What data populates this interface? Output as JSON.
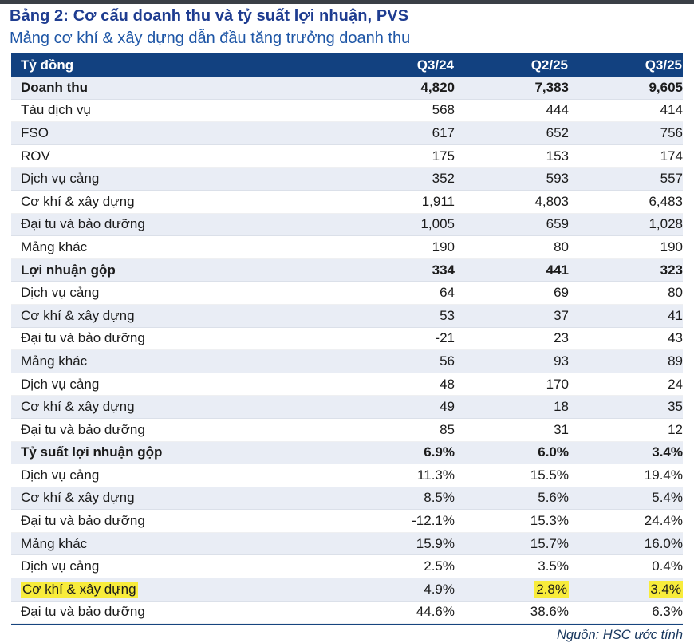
{
  "colors": {
    "rule_top": "#3a3f46",
    "rule_bottom": "#17457f",
    "title": "#1e3c90",
    "subtitle": "#1e56a6",
    "header_bg": "#124180",
    "zebra": "#e9edf5",
    "highlight": "#f8ec3b",
    "text": "#1b1b1b",
    "source": "#17365d"
  },
  "title": "Bảng 2: Cơ cấu doanh thu và tỷ suất lợi nhuận, PVS",
  "subtitle": "Mảng cơ khí & xây dựng dẫn đầu tăng trưởng doanh thu",
  "source": "Nguồn: HSC ước tính",
  "table": {
    "headers": [
      "Tỷ đồng",
      "Q3/24",
      "Q2/25",
      "Q3/25"
    ],
    "rows": [
      {
        "label": "Doanh thu",
        "values": [
          "4,820",
          "7,383",
          "9,605"
        ],
        "bold": true
      },
      {
        "label": "Tàu dịch vụ",
        "values": [
          "568",
          "444",
          "414"
        ]
      },
      {
        "label": "FSO",
        "values": [
          "617",
          "652",
          "756"
        ]
      },
      {
        "label": "ROV",
        "values": [
          "175",
          "153",
          "174"
        ]
      },
      {
        "label": "Dịch vụ cảng",
        "values": [
          "352",
          "593",
          "557"
        ]
      },
      {
        "label": "Cơ khí & xây dựng",
        "values": [
          "1,911",
          "4,803",
          "6,483"
        ]
      },
      {
        "label": "Đại tu và bảo dưỡng",
        "values": [
          "1,005",
          "659",
          "1,028"
        ]
      },
      {
        "label": "Mảng khác",
        "values": [
          "190",
          "80",
          "190"
        ]
      },
      {
        "label": "Lợi nhuận gộp",
        "values": [
          "334",
          "441",
          "323"
        ],
        "bold": true
      },
      {
        "label": "Dịch vụ cảng",
        "values": [
          "64",
          "69",
          "80"
        ]
      },
      {
        "label": "Cơ khí & xây dựng",
        "values": [
          "53",
          "37",
          "41"
        ]
      },
      {
        "label": "Đại tu và bảo dưỡng",
        "values": [
          "-21",
          "23",
          "43"
        ]
      },
      {
        "label": "Mảng khác",
        "values": [
          "56",
          "93",
          "89"
        ]
      },
      {
        "label": "Dịch vụ cảng",
        "values": [
          "48",
          "170",
          "24"
        ]
      },
      {
        "label": "Cơ khí & xây dựng",
        "values": [
          "49",
          "18",
          "35"
        ]
      },
      {
        "label": "Đại tu và bảo dưỡng",
        "values": [
          "85",
          "31",
          "12"
        ]
      },
      {
        "label": "Tỷ suất lợi nhuận gộp",
        "values": [
          "6.9%",
          "6.0%",
          "3.4%"
        ],
        "bold": true
      },
      {
        "label": "Dịch vụ cảng",
        "values": [
          "11.3%",
          "15.5%",
          "19.4%"
        ]
      },
      {
        "label": "Cơ khí & xây dựng",
        "values": [
          "8.5%",
          "5.6%",
          "5.4%"
        ]
      },
      {
        "label": "Đại tu và bảo dưỡng",
        "values": [
          "-12.1%",
          "15.3%",
          "24.4%"
        ]
      },
      {
        "label": "Mảng khác",
        "values": [
          "15.9%",
          "15.7%",
          "16.0%"
        ]
      },
      {
        "label": "Dịch vụ cảng",
        "values": [
          "2.5%",
          "3.5%",
          "0.4%"
        ]
      },
      {
        "label": "Cơ khí & xây dựng",
        "values": [
          "4.9%",
          "2.8%",
          "3.4%"
        ],
        "highlight_label": true,
        "highlight_cells": [
          1,
          2
        ]
      },
      {
        "label": "Đại tu và bảo dưỡng",
        "values": [
          "44.6%",
          "38.6%",
          "6.3%"
        ]
      }
    ]
  }
}
